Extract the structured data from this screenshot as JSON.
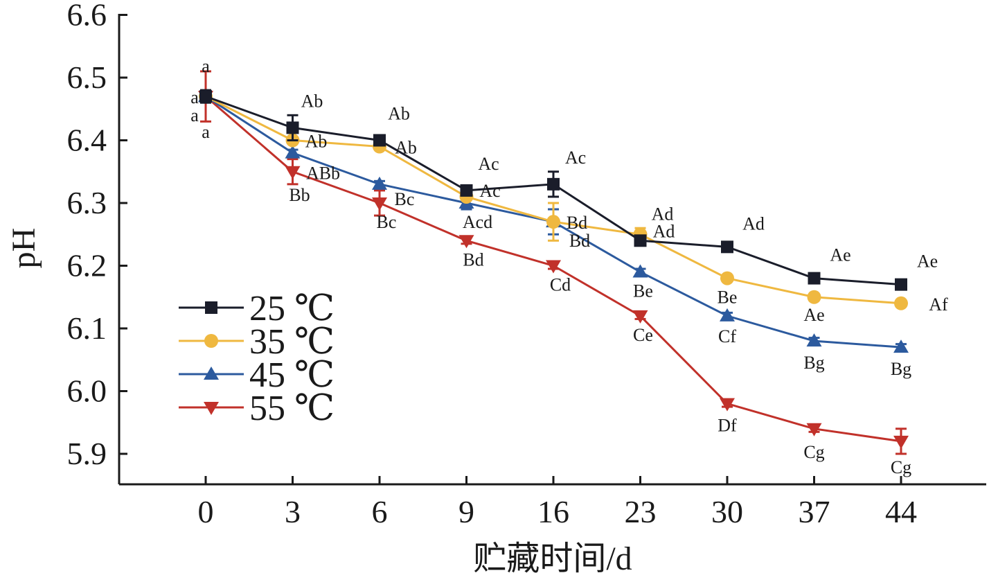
{
  "chart_data": {
    "type": "line",
    "xlabel": "贮藏时间/d",
    "ylabel": "pH",
    "categories": [
      "0",
      "3",
      "6",
      "9",
      "16",
      "23",
      "30",
      "37",
      "44"
    ],
    "ylim": [
      5.85,
      6.6
    ],
    "yticks": [
      "5.9",
      "6.0",
      "6.1",
      "6.2",
      "6.3",
      "6.4",
      "6.5",
      "6.6"
    ],
    "grid": false,
    "legend_position": "bottom-left",
    "series": [
      {
        "name": "25 ℃",
        "color": "#1a1d2a",
        "marker": "square",
        "values": [
          6.47,
          6.42,
          6.4,
          6.32,
          6.33,
          6.24,
          6.23,
          6.18,
          6.17
        ],
        "errors": [
          0.01,
          0.02,
          0.005,
          0.005,
          0.02,
          0.005,
          0.005,
          0.005,
          0.005
        ],
        "labels": [
          "a",
          "Ab",
          "Ab",
          "Ac",
          "Ac",
          "Ad",
          "Ad",
          "Ae",
          "Ae"
        ]
      },
      {
        "name": "35 ℃",
        "color": "#efb840",
        "marker": "circle",
        "values": [
          6.47,
          6.4,
          6.39,
          6.31,
          6.27,
          6.25,
          6.18,
          6.15,
          6.14
        ],
        "errors": [
          0.005,
          0.005,
          0.005,
          0.005,
          0.03,
          0.01,
          0.005,
          0.005,
          0.005
        ],
        "labels": [
          "a",
          "Ab",
          "Ab",
          "Ac",
          "Bd",
          "Ad",
          "Be",
          "Ae",
          "Af"
        ]
      },
      {
        "name": "45 ℃",
        "color": "#2c5a9e",
        "marker": "triangle-up",
        "values": [
          6.47,
          6.38,
          6.33,
          6.3,
          6.27,
          6.19,
          6.12,
          6.08,
          6.07
        ],
        "errors": [
          0.005,
          0.005,
          0.005,
          0.01,
          0.02,
          0.005,
          0.005,
          0.005,
          0.005
        ],
        "labels": [
          "a",
          "ABb",
          "Bc",
          "Acd",
          "Bd",
          "Be",
          "Cf",
          "Bg",
          "Bg"
        ]
      },
      {
        "name": "55 ℃",
        "color": "#c1312a",
        "marker": "triangle-down",
        "values": [
          6.47,
          6.35,
          6.3,
          6.24,
          6.2,
          6.12,
          5.98,
          5.94,
          5.92
        ],
        "errors": [
          0.04,
          0.02,
          0.02,
          0.005,
          0.005,
          0.005,
          0.005,
          0.005,
          0.02
        ],
        "labels": [
          "a",
          "Bb",
          "Bc",
          "Bd",
          "Cd",
          "Ce",
          "Df",
          "Cg",
          "Cg"
        ]
      }
    ]
  }
}
